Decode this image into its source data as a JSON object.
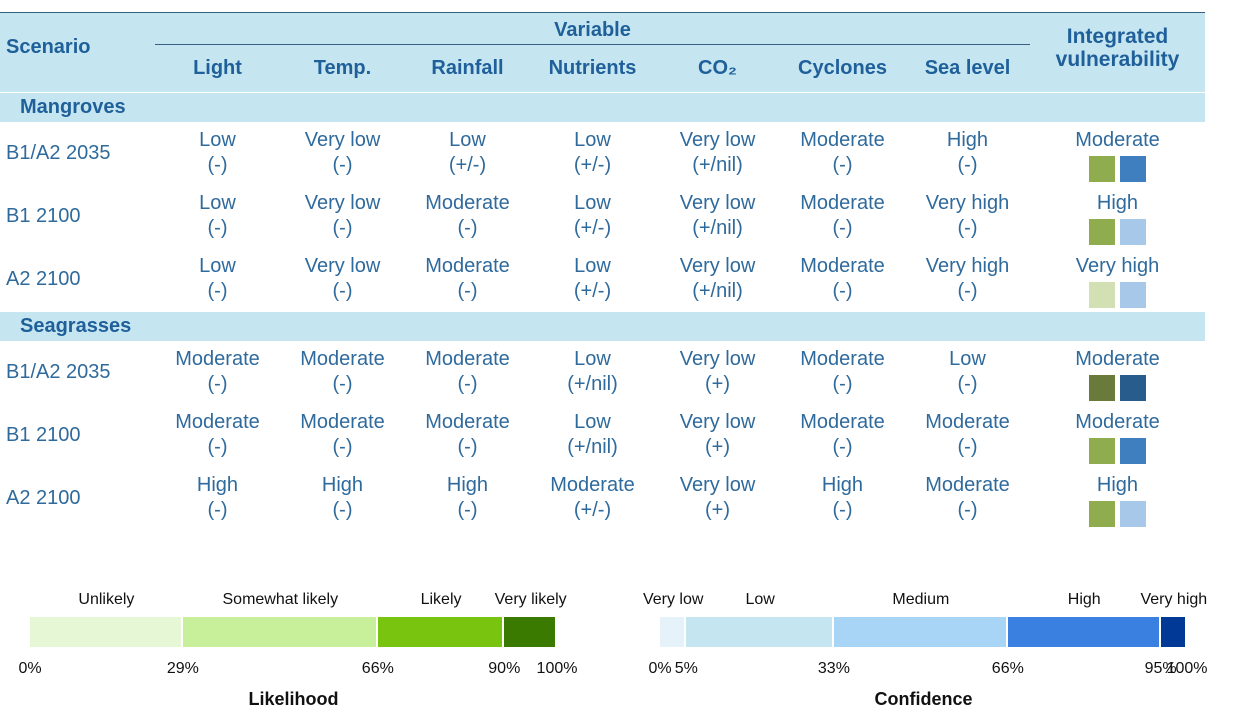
{
  "table": {
    "headers": {
      "scenario": "Scenario",
      "variable": "Variable",
      "columns": [
        "Light",
        "Temp.",
        "Rainfall",
        "Nutrients",
        "CO₂",
        "Cyclones",
        "Sea level"
      ],
      "integrated": "Integrated vulnerability"
    },
    "sections": [
      {
        "name": "Mangroves",
        "rows": [
          {
            "scenario": "B1/A2 2035",
            "cells": [
              [
                "Low",
                "(-)"
              ],
              [
                "Very low",
                "(-)"
              ],
              [
                "Low",
                "(+/-)"
              ],
              [
                "Low",
                "(+/-)"
              ],
              [
                "Very low",
                "(+/nil)"
              ],
              [
                "Moderate",
                "(-)"
              ],
              [
                "High",
                "(-)"
              ]
            ],
            "vulnerability": "Moderate",
            "likelihood_color": "#8fac4e",
            "confidence_color": "#3f7fbf"
          },
          {
            "scenario": "B1 2100",
            "cells": [
              [
                "Low",
                "(-)"
              ],
              [
                "Very low",
                "(-)"
              ],
              [
                "Moderate",
                "(-)"
              ],
              [
                "Low",
                "(+/-)"
              ],
              [
                "Very low",
                "(+/nil)"
              ],
              [
                "Moderate",
                "(-)"
              ],
              [
                "Very high",
                "(-)"
              ]
            ],
            "vulnerability": "High",
            "likelihood_color": "#8fac4e",
            "confidence_color": "#a7c8e8"
          },
          {
            "scenario": "A2 2100",
            "cells": [
              [
                "Low",
                "(-)"
              ],
              [
                "Very low",
                "(-)"
              ],
              [
                "Moderate",
                "(-)"
              ],
              [
                "Low",
                "(+/-)"
              ],
              [
                "Very low",
                "(+/nil)"
              ],
              [
                "Moderate",
                "(-)"
              ],
              [
                "Very high",
                "(-)"
              ]
            ],
            "vulnerability": "Very high",
            "likelihood_color": "#d3e0b4",
            "confidence_color": "#a7c8e8"
          }
        ]
      },
      {
        "name": "Seagrasses",
        "rows": [
          {
            "scenario": "B1/A2 2035",
            "cells": [
              [
                "Moderate",
                "(-)"
              ],
              [
                "Moderate",
                "(-)"
              ],
              [
                "Moderate",
                "(-)"
              ],
              [
                "Low",
                "(+/nil)"
              ],
              [
                "Very low",
                "(+)"
              ],
              [
                "Moderate",
                "(-)"
              ],
              [
                "Low",
                "(-)"
              ]
            ],
            "vulnerability": "Moderate",
            "likelihood_color": "#6a7a3a",
            "confidence_color": "#285c8c"
          },
          {
            "scenario": "B1 2100",
            "cells": [
              [
                "Moderate",
                "(-)"
              ],
              [
                "Moderate",
                "(-)"
              ],
              [
                "Moderate",
                "(-)"
              ],
              [
                "Low",
                "(+/nil)"
              ],
              [
                "Very low",
                "(+)"
              ],
              [
                "Moderate",
                "(-)"
              ],
              [
                "Moderate",
                "(-)"
              ]
            ],
            "vulnerability": "Moderate",
            "likelihood_color": "#8fac4e",
            "confidence_color": "#3f7fbf"
          },
          {
            "scenario": "A2 2100",
            "cells": [
              [
                "High",
                "(-)"
              ],
              [
                "High",
                "(-)"
              ],
              [
                "High",
                "(-)"
              ],
              [
                "Moderate",
                "(+/-)"
              ],
              [
                "Very low",
                "(+)"
              ],
              [
                "High",
                "(-)"
              ],
              [
                "Moderate",
                "(-)"
              ]
            ],
            "vulnerability": "High",
            "likelihood_color": "#8fac4e",
            "confidence_color": "#a7c8e8"
          }
        ]
      }
    ]
  },
  "legends": [
    {
      "title": "Likelihood",
      "categories": [
        "Unlikely",
        "Somewhat likely",
        "Likely",
        "Very likely"
      ],
      "colors": [
        "#e6f7d6",
        "#c8ef9a",
        "#78c40e",
        "#3a7a00"
      ],
      "ticks": [
        {
          "value": 0,
          "label": "0%"
        },
        {
          "value": 29,
          "label": "29%"
        },
        {
          "value": 66,
          "label": "66%"
        },
        {
          "value": 90,
          "label": "90%"
        },
        {
          "value": 100,
          "label": "100%"
        }
      ]
    },
    {
      "title": "Confidence",
      "categories": [
        "Very low",
        "Low",
        "Medium",
        "High",
        "Very high"
      ],
      "colors": [
        "#e6f2fa",
        "#c5e6f0",
        "#a8d4f5",
        "#3a80e0",
        "#003a96"
      ],
      "ticks": [
        {
          "value": 0,
          "label": "0%"
        },
        {
          "value": 5,
          "label": "5%"
        },
        {
          "value": 33,
          "label": "33%"
        },
        {
          "value": 66,
          "label": "66%"
        },
        {
          "value": 95,
          "label": "95%"
        },
        {
          "value": 100,
          "label": "100%"
        }
      ]
    }
  ]
}
